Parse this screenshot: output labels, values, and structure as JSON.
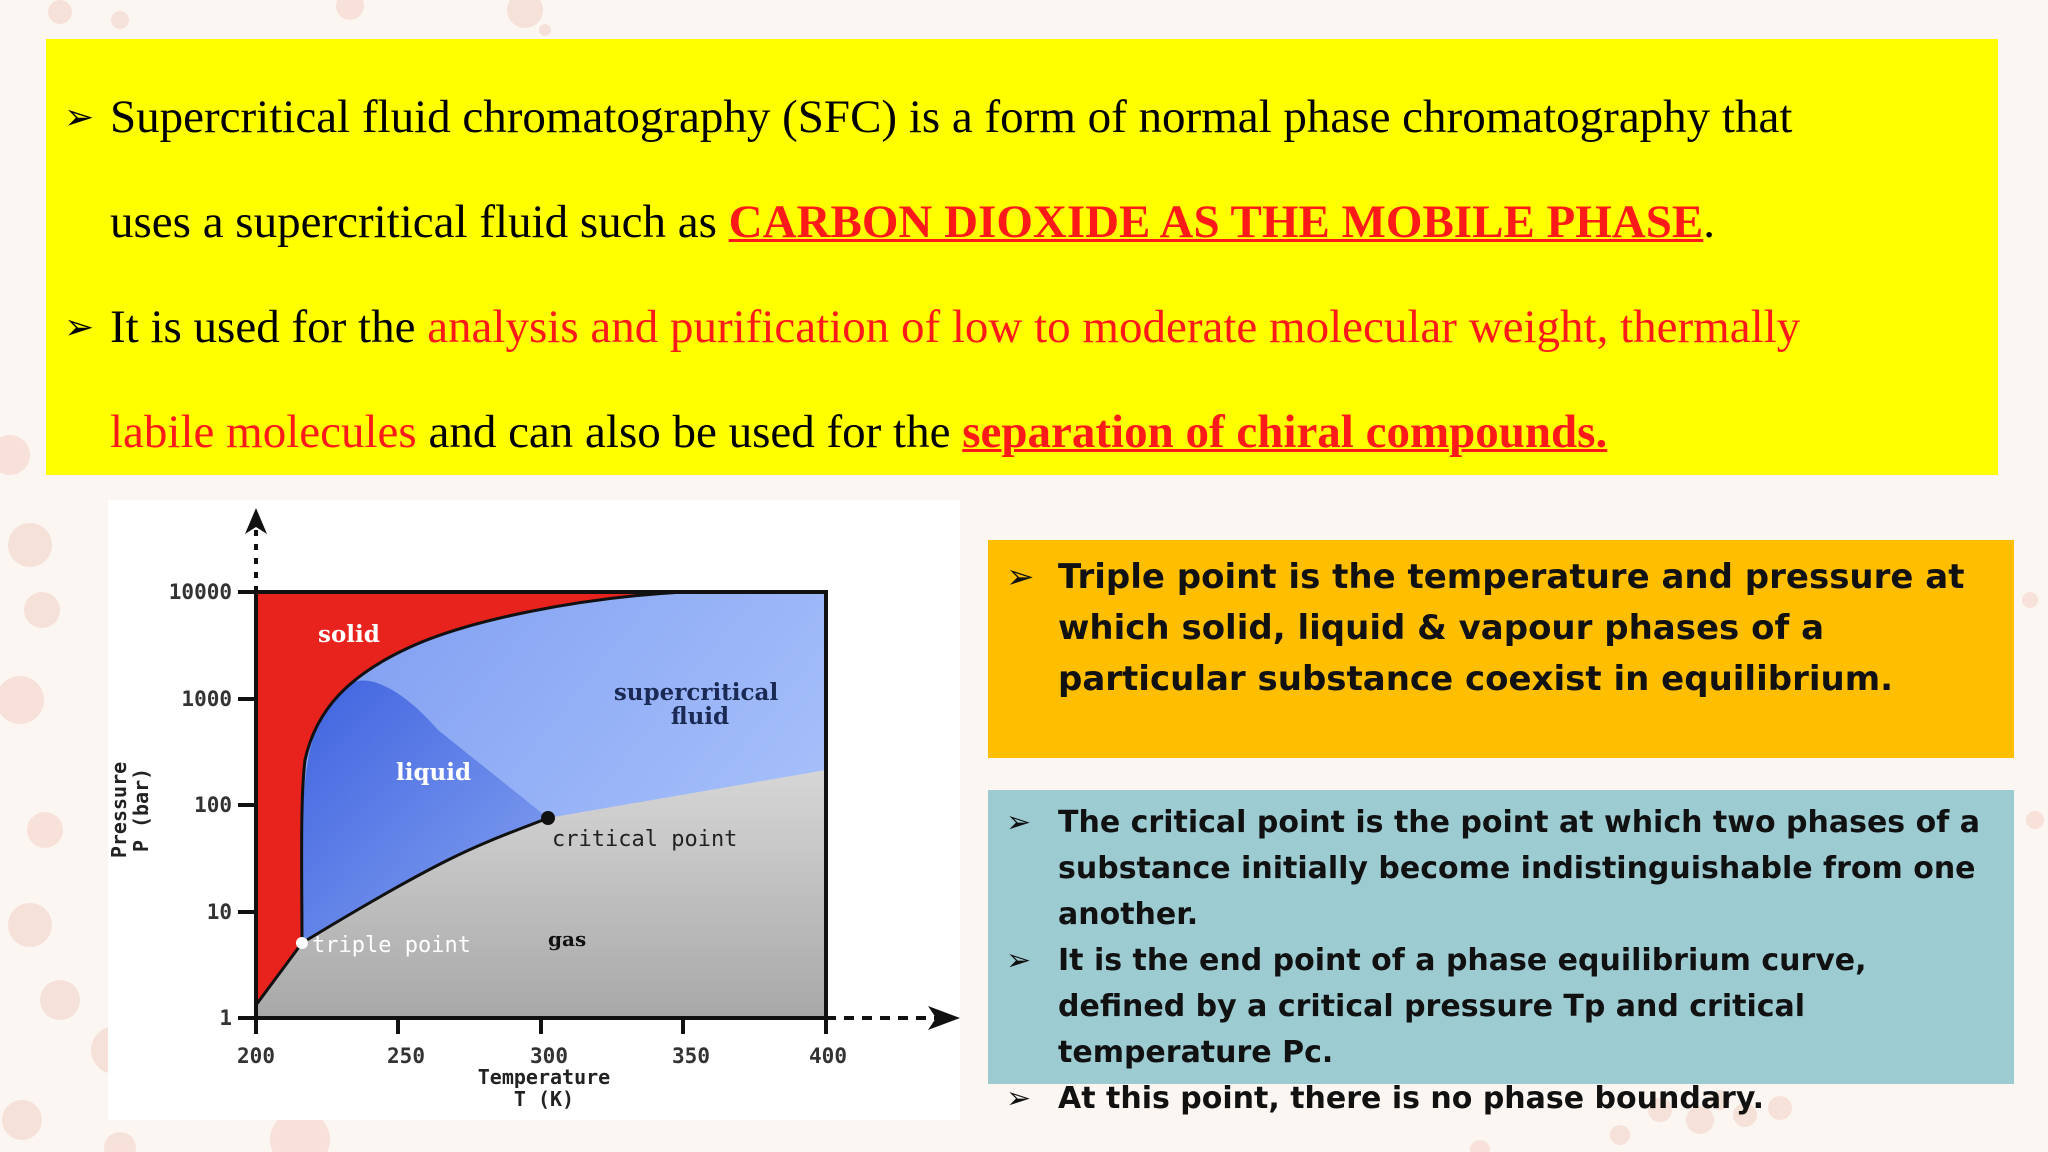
{
  "bullets_top": [
    {
      "segments": [
        {
          "text": "Supercritical fluid chromatography (SFC) is a form of normal phase chromatography that",
          "style": "normal"
        }
      ]
    },
    {
      "indent": true,
      "segments": [
        {
          "text": "uses a supercritical fluid such as ",
          "style": "normal"
        },
        {
          "text": "CARBON DIOXIDE AS THE MOBILE PHASE",
          "style": "red-bold-u"
        },
        {
          "text": ".",
          "style": "normal"
        }
      ]
    },
    {
      "segments": [
        {
          "text": "It is used for the ",
          "style": "normal"
        },
        {
          "text": "analysis and purification of low to moderate molecular weight, thermally",
          "style": "red"
        }
      ]
    },
    {
      "indent": true,
      "segments": [
        {
          "text": "labile molecules",
          "style": "red"
        },
        {
          "text": " and can also be used for the ",
          "style": "normal"
        },
        {
          "text": "separation of chiral compounds.",
          "style": "red-bold-u"
        }
      ]
    }
  ],
  "diagram": {
    "y_ticks": [
      "10000",
      "1000",
      "100",
      "10",
      "1"
    ],
    "x_ticks": [
      "200",
      "250",
      "300",
      "350",
      "400"
    ],
    "x_label_line1": "Temperature",
    "x_label_line2": "T (K)",
    "y_label_line1": "Pressure",
    "y_label_line2": "P (bar)",
    "region_solid": "solid",
    "region_liquid": "liquid",
    "region_gas": "gas",
    "region_supercritical_line1": "supercritical",
    "region_supercritical_line2": "fluid",
    "label_critical_point": "critical point",
    "label_triple_point": "triple point",
    "colors": {
      "solid": "#e8221c",
      "liquid": "#5a7fe6",
      "supercritical": "#9fb8f5",
      "gas": "#bcbcbc"
    }
  },
  "orange_box": {
    "text": "Triple point is the temperature and pressure at which solid, liquid & vapour phases of a particular substance coexist in equilibrium."
  },
  "teal_box": {
    "items": [
      "The critical point  is the point at which two phases of a substance initially become indistinguishable from one another.",
      "It is the end point of a phase equilibrium curve, defined by a critical pressure Tp and critical temperature Pc.",
      "At this point, there is no phase boundary."
    ],
    "trailing_period": "."
  },
  "arrow_glyph": "➢"
}
